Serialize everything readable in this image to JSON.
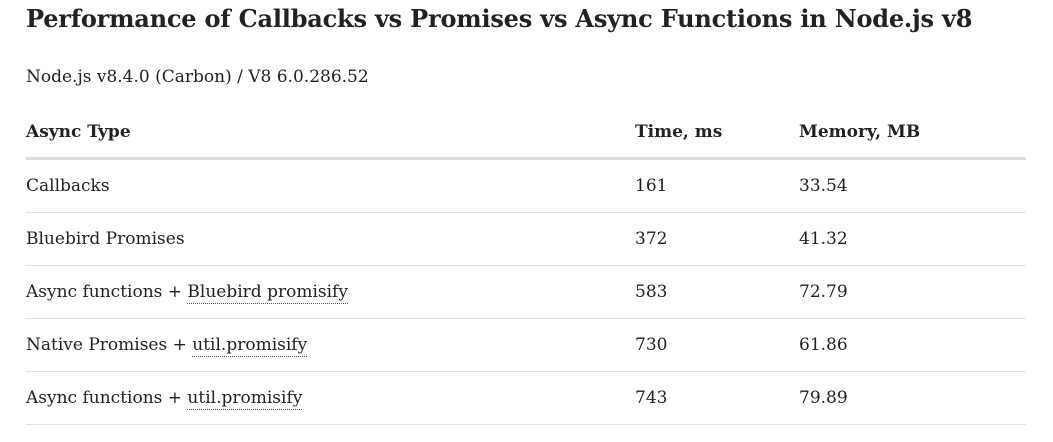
{
  "title": "Performance of Callbacks vs Promises vs Async Functions in Node.js v8",
  "subtitle": "Node.js v8.4.0 (Carbon) / V8 6.0.286.52",
  "table": {
    "headers": [
      "Async Type",
      "Time, ms",
      "Memory, MB"
    ],
    "rows": [
      {
        "type_prefix": "Callbacks",
        "type_link": "",
        "time": "161",
        "memory": "33.54"
      },
      {
        "type_prefix": "Bluebird Promises",
        "type_link": "",
        "time": "372",
        "memory": "41.32"
      },
      {
        "type_prefix": "Async functions + ",
        "type_link": "Bluebird promisify",
        "time": "583",
        "memory": "72.79"
      },
      {
        "type_prefix": "Native Promises + ",
        "type_link": "util.promisify",
        "time": "730",
        "memory": "61.86"
      },
      {
        "type_prefix": "Async functions + ",
        "type_link": "util.promisify",
        "time": "743",
        "memory": "79.89"
      }
    ]
  }
}
